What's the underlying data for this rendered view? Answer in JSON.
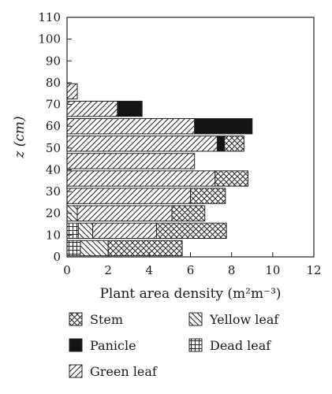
{
  "chart_data": {
    "type": "bar",
    "orientation": "horizontal",
    "stacked": true,
    "xlabel": "Plant area density (m²m⁻³)",
    "ylabel": "z (cm)",
    "xlim": [
      0,
      12
    ],
    "ylim": [
      0,
      110
    ],
    "xticks": [
      "0",
      "2",
      "4",
      "6",
      "8",
      "10",
      "12"
    ],
    "yticks": [
      "0",
      "10",
      "20",
      "30",
      "40",
      "50",
      "60",
      "70",
      "80",
      "90",
      "100",
      "110"
    ],
    "grid": false,
    "legend_placement": "bottom",
    "bin_height_cm": 8,
    "bins_bottom_cm": [
      0,
      8,
      16,
      24,
      32,
      40,
      48,
      56,
      64,
      72,
      80,
      88
    ],
    "series": [
      {
        "name": "Dead leaf",
        "pattern": "grid",
        "values": [
          0.65,
          0.55,
          0,
          0,
          0,
          0,
          0,
          0,
          0,
          0,
          0,
          0
        ]
      },
      {
        "name": "Yellow leaf",
        "pattern": "backslash",
        "values": [
          1.35,
          0.7,
          0.5,
          0,
          0,
          0,
          0,
          0,
          0,
          0,
          0,
          0
        ]
      },
      {
        "name": "Green leaf",
        "pattern": "slash",
        "values": [
          0,
          3.1,
          4.6,
          6.0,
          7.2,
          6.2,
          7.3,
          6.2,
          2.45,
          0.5,
          0,
          0
        ]
      },
      {
        "name": "Panicle",
        "pattern": "solid",
        "values": [
          0,
          0,
          0,
          0,
          0,
          0,
          0.35,
          2.8,
          1.2,
          0,
          0,
          0
        ]
      },
      {
        "name": "Stem",
        "pattern": "crosshatch",
        "values": [
          3.6,
          3.4,
          1.6,
          1.7,
          1.6,
          0,
          0.95,
          0,
          0,
          0,
          0,
          0
        ]
      }
    ],
    "legend_layout": [
      [
        "Stem",
        "Yellow leaf"
      ],
      [
        "Panicle",
        "Dead leaf"
      ],
      [
        "Green leaf"
      ]
    ]
  }
}
